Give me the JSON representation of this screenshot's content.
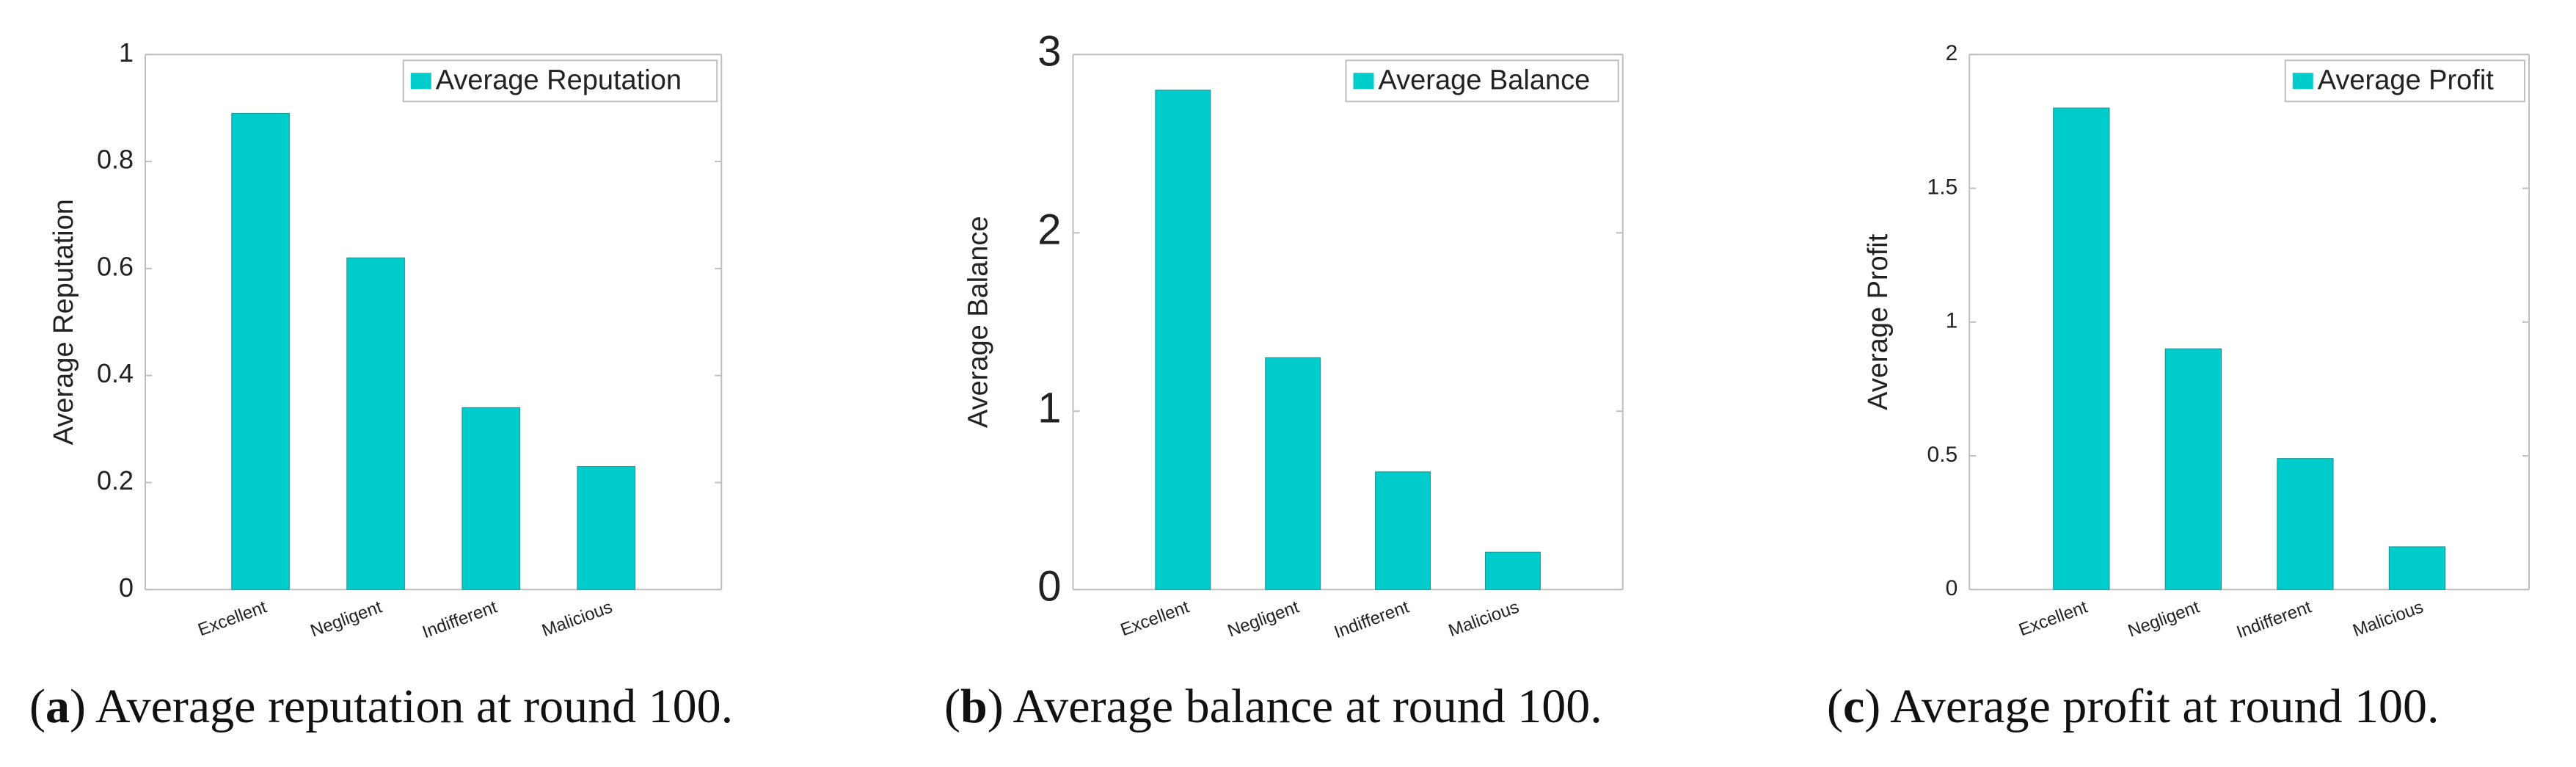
{
  "figure": {
    "captions": [
      {
        "tag": "a",
        "text": "Average reputation at round 100."
      },
      {
        "tag": "b",
        "text": "Average balance at round 100."
      },
      {
        "tag": "c",
        "text": "Average profit at round 100."
      }
    ]
  },
  "colors": {
    "bar": "#00CCCC",
    "axis": "#262626",
    "frame": "#BFBFBF"
  },
  "chart_data": [
    {
      "type": "bar",
      "title": "",
      "categories": [
        "Excellent",
        "Negligent",
        "Indifferent",
        "Malicious"
      ],
      "values": [
        0.89,
        0.62,
        0.34,
        0.23
      ],
      "legend": "Average Reputation",
      "legend_position": "top-right",
      "xlabel": "",
      "ylabel": "Average Reputation",
      "ylim": [
        0,
        1
      ],
      "yticks": [
        0,
        0.2,
        0.4,
        0.6,
        0.8,
        1
      ],
      "ytick_labels": [
        "0",
        "0.2",
        "0.4",
        "0.6",
        "0.8",
        "1"
      ],
      "grid": false
    },
    {
      "type": "bar",
      "title": "",
      "categories": [
        "Excellent",
        "Negligent",
        "Indifferent",
        "Malicious"
      ],
      "values": [
        2.8,
        1.3,
        0.66,
        0.21
      ],
      "legend": "Average Balance",
      "legend_position": "top-right",
      "xlabel": "",
      "ylabel": "Average Balance",
      "ylim": [
        0,
        3
      ],
      "yticks": [
        0,
        1,
        2,
        3
      ],
      "ytick_labels": [
        "0",
        "1",
        "2",
        "3"
      ],
      "grid": false
    },
    {
      "type": "bar",
      "title": "",
      "categories": [
        "Excellent",
        "Negligent",
        "Indifferent",
        "Malicious"
      ],
      "values": [
        1.8,
        0.9,
        0.49,
        0.16
      ],
      "legend": "Average Profit",
      "legend_position": "top-right",
      "xlabel": "",
      "ylabel": "Average Profit",
      "ylim": [
        0,
        2
      ],
      "yticks": [
        0,
        0.5,
        1,
        1.5,
        2
      ],
      "ytick_labels": [
        "0",
        "0.5",
        "1",
        "1.5",
        "2"
      ],
      "grid": false
    }
  ]
}
